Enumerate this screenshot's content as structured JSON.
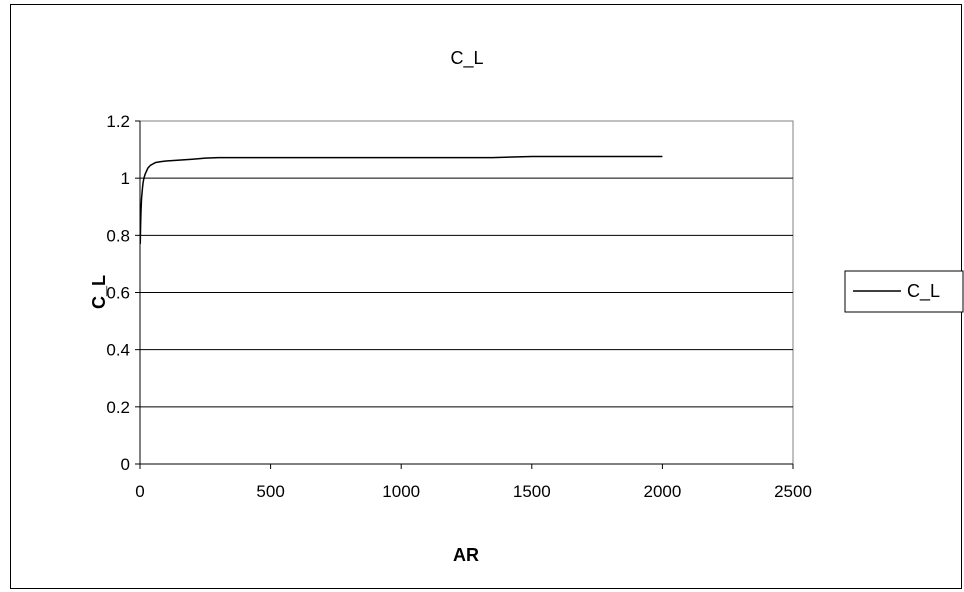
{
  "chart_data": {
    "type": "line",
    "title": "C_L",
    "xlabel": "AR",
    "ylabel": "C_L",
    "xlim": [
      0,
      2500
    ],
    "ylim": [
      0,
      1.2
    ],
    "x_ticks": [
      0,
      500,
      1000,
      1500,
      2000,
      2500
    ],
    "y_ticks": [
      0,
      0.2,
      0.4,
      0.6,
      0.8,
      1,
      1.2
    ],
    "x_tick_labels": [
      "0",
      "500",
      "1000",
      "1500",
      "2000",
      "2500"
    ],
    "y_tick_labels": [
      "0",
      "0.2",
      "0.4",
      "0.6",
      "0.8",
      "1",
      "1.2"
    ],
    "grid": {
      "horizontal": true,
      "vertical": false
    },
    "legend": {
      "position": "right",
      "entries": [
        "C_L"
      ]
    },
    "series": [
      {
        "name": "C_L",
        "color": "#000000",
        "x": [
          1,
          2,
          3,
          4,
          5,
          6,
          8,
          10,
          12,
          15,
          20,
          25,
          30,
          40,
          50,
          60,
          80,
          100,
          150,
          200,
          250,
          300,
          500,
          1000,
          1350,
          1500,
          2000
        ],
        "y": [
          0.77,
          0.82,
          0.86,
          0.89,
          0.91,
          0.93,
          0.95,
          0.97,
          0.985,
          1.0,
          1.015,
          1.025,
          1.035,
          1.045,
          1.05,
          1.055,
          1.058,
          1.06,
          1.063,
          1.066,
          1.07,
          1.072,
          1.072,
          1.072,
          1.072,
          1.076,
          1.076
        ]
      }
    ]
  }
}
